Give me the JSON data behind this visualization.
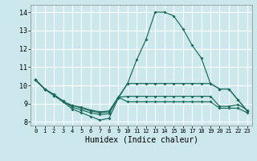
{
  "bg_color": "#cce8ec",
  "grid_color": "#b8dde0",
  "line_color": "#1a6b5a",
  "xlabel": "Humidex (Indice chaleur)",
  "xlim": [
    -0.5,
    23.5
  ],
  "ylim": [
    7.8,
    14.4
  ],
  "xticks": [
    0,
    1,
    2,
    3,
    4,
    5,
    6,
    7,
    8,
    9,
    10,
    11,
    12,
    13,
    14,
    15,
    16,
    17,
    18,
    19,
    20,
    21,
    22,
    23
  ],
  "yticks": [
    8,
    9,
    10,
    11,
    12,
    13,
    14
  ],
  "series": [
    [
      10.3,
      9.8,
      9.5,
      9.1,
      8.7,
      8.5,
      8.3,
      8.1,
      8.2,
      9.3,
      10.1,
      11.4,
      12.5,
      14.0,
      14.0,
      13.8,
      13.1,
      12.2,
      11.5,
      10.1,
      9.8,
      9.8,
      9.2,
      8.6
    ],
    [
      10.3,
      9.8,
      9.5,
      9.15,
      8.8,
      8.65,
      8.5,
      8.4,
      8.45,
      9.35,
      10.1,
      10.1,
      10.1,
      10.1,
      10.1,
      10.1,
      10.1,
      10.1,
      10.1,
      10.1,
      9.8,
      9.8,
      9.2,
      8.6
    ],
    [
      10.3,
      9.8,
      9.45,
      9.1,
      8.9,
      8.75,
      8.6,
      8.5,
      8.55,
      9.35,
      9.4,
      9.4,
      9.4,
      9.4,
      9.4,
      9.4,
      9.4,
      9.4,
      9.4,
      9.4,
      8.85,
      8.85,
      8.95,
      8.65
    ],
    [
      10.3,
      9.8,
      9.45,
      9.1,
      8.9,
      8.8,
      8.65,
      8.55,
      8.6,
      9.35,
      9.1,
      9.1,
      9.1,
      9.1,
      9.1,
      9.1,
      9.1,
      9.1,
      9.1,
      9.1,
      8.75,
      8.75,
      8.75,
      8.5
    ]
  ]
}
